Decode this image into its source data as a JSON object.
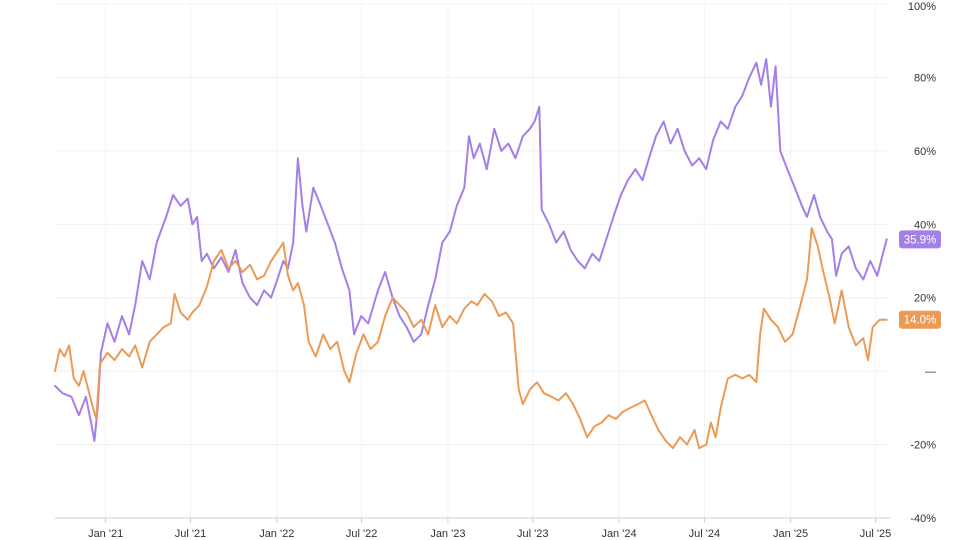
{
  "chart_data": {
    "type": "line",
    "title": "",
    "xlabel": "",
    "ylabel": "",
    "x_ticks": [
      "Jan '21",
      "Jul '21",
      "Jan '22",
      "Jul '22",
      "Jan '23",
      "Jul '23",
      "Jan '24",
      "Jul '24",
      "Jan '25",
      "Jul '25"
    ],
    "y_ticks": [
      {
        "value": 100,
        "label": "100%"
      },
      {
        "value": 80,
        "label": "80%"
      },
      {
        "value": 60,
        "label": "60%"
      },
      {
        "value": 40,
        "label": "40%"
      },
      {
        "value": 20,
        "label": "20%"
      },
      {
        "value": 0,
        "label": "—"
      },
      {
        "value": -20,
        "label": "-20%"
      },
      {
        "value": -40,
        "label": "-40%"
      }
    ],
    "ylim": [
      -40,
      100
    ],
    "xlim": [
      "2020-09-15",
      "2025-08-01"
    ],
    "grid": true,
    "series": [
      {
        "color": "#a47fe6",
        "end_label": "35.9%",
        "points": [
          [
            "2020-09-15",
            -4
          ],
          [
            "2020-10-01",
            -6
          ],
          [
            "2020-10-20",
            -7
          ],
          [
            "2020-11-05",
            -12
          ],
          [
            "2020-11-20",
            -7
          ],
          [
            "2020-12-01",
            -14
          ],
          [
            "2020-12-08",
            -19
          ],
          [
            "2020-12-15",
            -10
          ],
          [
            "2020-12-22",
            5
          ],
          [
            "2021-01-05",
            13
          ],
          [
            "2021-01-20",
            8
          ],
          [
            "2021-02-05",
            15
          ],
          [
            "2021-02-20",
            10
          ],
          [
            "2021-03-05",
            18
          ],
          [
            "2021-03-20",
            30
          ],
          [
            "2021-04-05",
            25
          ],
          [
            "2021-04-20",
            35
          ],
          [
            "2021-05-10",
            42
          ],
          [
            "2021-05-25",
            48
          ],
          [
            "2021-06-10",
            45
          ],
          [
            "2021-06-25",
            47
          ],
          [
            "2021-07-05",
            40
          ],
          [
            "2021-07-15",
            42
          ],
          [
            "2021-07-25",
            30
          ],
          [
            "2021-08-05",
            32
          ],
          [
            "2021-08-20",
            28
          ],
          [
            "2021-09-05",
            31
          ],
          [
            "2021-09-20",
            27
          ],
          [
            "2021-10-05",
            33
          ],
          [
            "2021-10-20",
            24
          ],
          [
            "2021-11-05",
            20
          ],
          [
            "2021-11-20",
            18
          ],
          [
            "2021-12-05",
            22
          ],
          [
            "2021-12-20",
            20
          ],
          [
            "2022-01-05",
            26
          ],
          [
            "2022-01-15",
            30
          ],
          [
            "2022-01-25",
            28
          ],
          [
            "2022-02-05",
            35
          ],
          [
            "2022-02-15",
            58
          ],
          [
            "2022-02-25",
            45
          ],
          [
            "2022-03-05",
            38
          ],
          [
            "2022-03-20",
            50
          ],
          [
            "2022-04-05",
            45
          ],
          [
            "2022-04-20",
            40
          ],
          [
            "2022-05-05",
            35
          ],
          [
            "2022-05-20",
            28
          ],
          [
            "2022-06-05",
            22
          ],
          [
            "2022-06-15",
            10
          ],
          [
            "2022-06-30",
            15
          ],
          [
            "2022-07-15",
            13
          ],
          [
            "2022-08-05",
            22
          ],
          [
            "2022-08-20",
            27
          ],
          [
            "2022-09-05",
            20
          ],
          [
            "2022-09-20",
            15
          ],
          [
            "2022-10-05",
            12
          ],
          [
            "2022-10-20",
            8
          ],
          [
            "2022-11-05",
            10
          ],
          [
            "2022-11-20",
            18
          ],
          [
            "2022-12-05",
            25
          ],
          [
            "2022-12-20",
            35
          ],
          [
            "2023-01-05",
            38
          ],
          [
            "2023-01-20",
            45
          ],
          [
            "2023-02-05",
            50
          ],
          [
            "2023-02-15",
            64
          ],
          [
            "2023-02-25",
            58
          ],
          [
            "2023-03-10",
            62
          ],
          [
            "2023-03-25",
            55
          ],
          [
            "2023-04-10",
            66
          ],
          [
            "2023-04-25",
            60
          ],
          [
            "2023-05-10",
            62
          ],
          [
            "2023-05-25",
            58
          ],
          [
            "2023-06-10",
            64
          ],
          [
            "2023-06-25",
            66
          ],
          [
            "2023-07-05",
            68
          ],
          [
            "2023-07-15",
            72
          ],
          [
            "2023-07-20",
            44
          ],
          [
            "2023-08-05",
            40
          ],
          [
            "2023-08-20",
            35
          ],
          [
            "2023-09-05",
            38
          ],
          [
            "2023-09-20",
            33
          ],
          [
            "2023-10-05",
            30
          ],
          [
            "2023-10-20",
            28
          ],
          [
            "2023-11-05",
            32
          ],
          [
            "2023-11-20",
            30
          ],
          [
            "2023-12-05",
            36
          ],
          [
            "2023-12-20",
            42
          ],
          [
            "2024-01-05",
            48
          ],
          [
            "2024-01-20",
            52
          ],
          [
            "2024-02-05",
            55
          ],
          [
            "2024-02-20",
            52
          ],
          [
            "2024-03-05",
            58
          ],
          [
            "2024-03-20",
            64
          ],
          [
            "2024-04-05",
            68
          ],
          [
            "2024-04-20",
            62
          ],
          [
            "2024-05-05",
            66
          ],
          [
            "2024-05-20",
            60
          ],
          [
            "2024-06-05",
            56
          ],
          [
            "2024-06-20",
            58
          ],
          [
            "2024-07-05",
            55
          ],
          [
            "2024-07-20",
            63
          ],
          [
            "2024-08-05",
            68
          ],
          [
            "2024-08-20",
            66
          ],
          [
            "2024-09-05",
            72
          ],
          [
            "2024-09-20",
            75
          ],
          [
            "2024-10-05",
            80
          ],
          [
            "2024-10-20",
            84
          ],
          [
            "2024-10-30",
            78
          ],
          [
            "2024-11-10",
            85
          ],
          [
            "2024-11-20",
            72
          ],
          [
            "2024-11-30",
            83
          ],
          [
            "2024-12-10",
            60
          ],
          [
            "2024-12-25",
            55
          ],
          [
            "2025-01-10",
            50
          ],
          [
            "2025-01-25",
            45
          ],
          [
            "2025-02-05",
            42
          ],
          [
            "2025-02-20",
            48
          ],
          [
            "2025-03-05",
            42
          ],
          [
            "2025-03-20",
            38
          ],
          [
            "2025-03-30",
            36
          ],
          [
            "2025-04-08",
            26
          ],
          [
            "2025-04-20",
            32
          ],
          [
            "2025-05-05",
            34
          ],
          [
            "2025-05-20",
            28
          ],
          [
            "2025-06-05",
            25
          ],
          [
            "2025-06-20",
            30
          ],
          [
            "2025-07-05",
            26
          ],
          [
            "2025-07-15",
            31
          ],
          [
            "2025-07-25",
            35.9
          ]
        ]
      },
      {
        "color": "#ec9b57",
        "end_label": "14.0%",
        "points": [
          [
            "2020-09-15",
            0
          ],
          [
            "2020-09-25",
            6
          ],
          [
            "2020-10-05",
            4
          ],
          [
            "2020-10-15",
            7
          ],
          [
            "2020-10-25",
            -2
          ],
          [
            "2020-11-05",
            -4
          ],
          [
            "2020-11-15",
            0
          ],
          [
            "2020-11-25",
            -5
          ],
          [
            "2020-12-05",
            -10
          ],
          [
            "2020-12-12",
            -13
          ],
          [
            "2020-12-20",
            2
          ],
          [
            "2021-01-05",
            5
          ],
          [
            "2021-01-20",
            3
          ],
          [
            "2021-02-05",
            6
          ],
          [
            "2021-02-20",
            4
          ],
          [
            "2021-03-05",
            7
          ],
          [
            "2021-03-20",
            1
          ],
          [
            "2021-04-05",
            8
          ],
          [
            "2021-04-20",
            10
          ],
          [
            "2021-05-05",
            12
          ],
          [
            "2021-05-20",
            13
          ],
          [
            "2021-05-28",
            21
          ],
          [
            "2021-06-10",
            16
          ],
          [
            "2021-06-25",
            14
          ],
          [
            "2021-07-05",
            16
          ],
          [
            "2021-07-20",
            18
          ],
          [
            "2021-08-05",
            23
          ],
          [
            "2021-08-20",
            30
          ],
          [
            "2021-09-05",
            33
          ],
          [
            "2021-09-20",
            28
          ],
          [
            "2021-10-05",
            30
          ],
          [
            "2021-10-20",
            27
          ],
          [
            "2021-11-05",
            29
          ],
          [
            "2021-11-20",
            25
          ],
          [
            "2021-12-05",
            26
          ],
          [
            "2021-12-20",
            30
          ],
          [
            "2022-01-05",
            33
          ],
          [
            "2022-01-15",
            35
          ],
          [
            "2022-01-25",
            26
          ],
          [
            "2022-02-05",
            22
          ],
          [
            "2022-02-15",
            24
          ],
          [
            "2022-02-28",
            18
          ],
          [
            "2022-03-10",
            8
          ],
          [
            "2022-03-25",
            4
          ],
          [
            "2022-04-10",
            10
          ],
          [
            "2022-04-25",
            6
          ],
          [
            "2022-05-10",
            8
          ],
          [
            "2022-05-25",
            0
          ],
          [
            "2022-06-05",
            -3
          ],
          [
            "2022-06-20",
            5
          ],
          [
            "2022-07-05",
            10
          ],
          [
            "2022-07-20",
            6
          ],
          [
            "2022-08-05",
            8
          ],
          [
            "2022-08-20",
            15
          ],
          [
            "2022-09-05",
            20
          ],
          [
            "2022-09-20",
            18
          ],
          [
            "2022-10-05",
            16
          ],
          [
            "2022-10-20",
            12
          ],
          [
            "2022-11-05",
            14
          ],
          [
            "2022-11-20",
            10
          ],
          [
            "2022-12-05",
            18
          ],
          [
            "2022-12-20",
            12
          ],
          [
            "2023-01-05",
            15
          ],
          [
            "2023-01-20",
            13
          ],
          [
            "2023-02-05",
            17
          ],
          [
            "2023-02-20",
            19
          ],
          [
            "2023-03-05",
            18
          ],
          [
            "2023-03-20",
            21
          ],
          [
            "2023-04-05",
            19
          ],
          [
            "2023-04-20",
            15
          ],
          [
            "2023-05-05",
            16
          ],
          [
            "2023-05-20",
            13
          ],
          [
            "2023-06-01",
            -5
          ],
          [
            "2023-06-10",
            -9
          ],
          [
            "2023-06-25",
            -5
          ],
          [
            "2023-07-10",
            -3
          ],
          [
            "2023-07-25",
            -6
          ],
          [
            "2023-08-10",
            -7
          ],
          [
            "2023-08-25",
            -8
          ],
          [
            "2023-09-10",
            -6
          ],
          [
            "2023-09-25",
            -9
          ],
          [
            "2023-10-10",
            -13
          ],
          [
            "2023-10-25",
            -18
          ],
          [
            "2023-11-10",
            -15
          ],
          [
            "2023-11-25",
            -14
          ],
          [
            "2023-12-10",
            -12
          ],
          [
            "2023-12-25",
            -13
          ],
          [
            "2024-01-10",
            -11
          ],
          [
            "2024-01-25",
            -10
          ],
          [
            "2024-02-10",
            -9
          ],
          [
            "2024-02-25",
            -8
          ],
          [
            "2024-03-10",
            -12
          ],
          [
            "2024-03-25",
            -16
          ],
          [
            "2024-04-10",
            -19
          ],
          [
            "2024-04-25",
            -21
          ],
          [
            "2024-05-10",
            -18
          ],
          [
            "2024-05-25",
            -20
          ],
          [
            "2024-06-10",
            -16
          ],
          [
            "2024-06-20",
            -21
          ],
          [
            "2024-07-05",
            -20
          ],
          [
            "2024-07-15",
            -14
          ],
          [
            "2024-07-25",
            -18
          ],
          [
            "2024-08-05",
            -10
          ],
          [
            "2024-08-20",
            -2
          ],
          [
            "2024-09-05",
            -1
          ],
          [
            "2024-09-20",
            -2
          ],
          [
            "2024-10-05",
            -1
          ],
          [
            "2024-10-20",
            -3
          ],
          [
            "2024-10-28",
            10
          ],
          [
            "2024-11-05",
            17
          ],
          [
            "2024-11-20",
            14
          ],
          [
            "2024-12-05",
            12
          ],
          [
            "2024-12-20",
            8
          ],
          [
            "2025-01-05",
            10
          ],
          [
            "2025-01-20",
            17
          ],
          [
            "2025-02-05",
            25
          ],
          [
            "2025-02-15",
            39
          ],
          [
            "2025-02-28",
            34
          ],
          [
            "2025-03-10",
            28
          ],
          [
            "2025-03-25",
            20
          ],
          [
            "2025-04-05",
            13
          ],
          [
            "2025-04-20",
            22
          ],
          [
            "2025-05-05",
            12
          ],
          [
            "2025-05-20",
            7
          ],
          [
            "2025-06-05",
            9
          ],
          [
            "2025-06-15",
            3
          ],
          [
            "2025-06-25",
            12
          ],
          [
            "2025-07-10",
            14
          ],
          [
            "2025-07-25",
            14.0
          ]
        ]
      }
    ]
  }
}
